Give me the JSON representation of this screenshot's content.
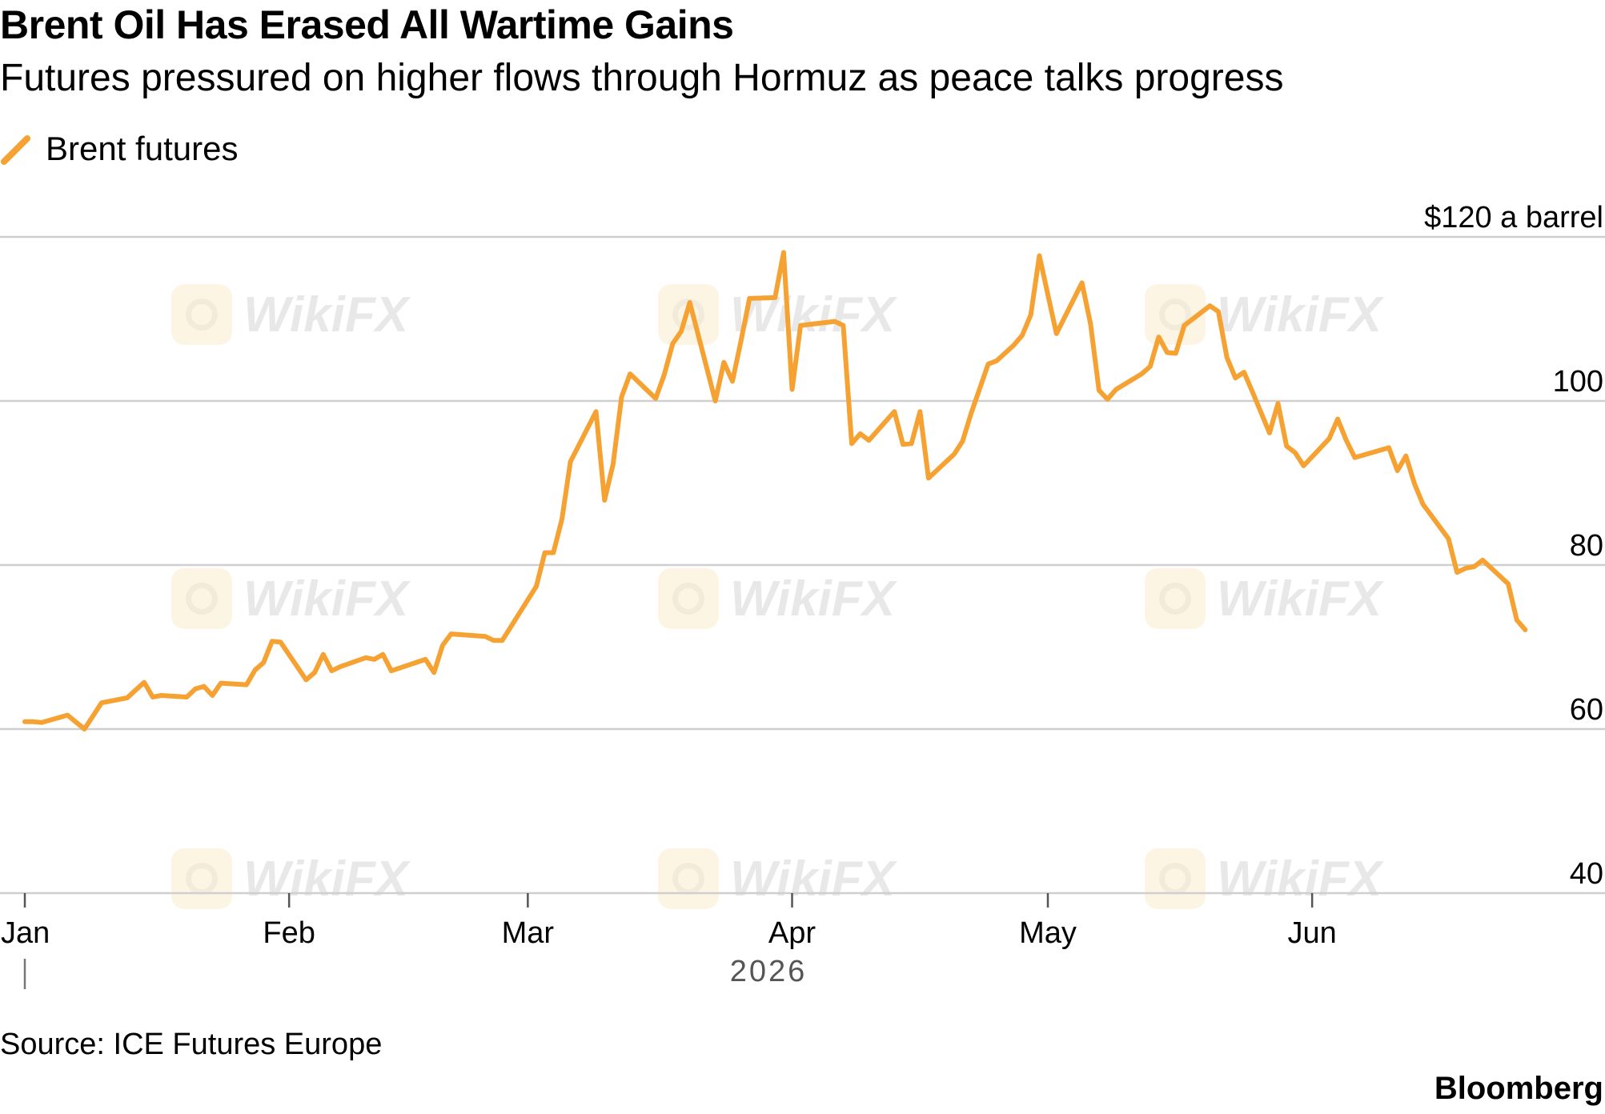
{
  "title": "Brent Oil Has Erased All Wartime Gains",
  "subtitle": "Futures pressured on higher flows through Hormuz as peace talks progress",
  "legend": {
    "label": "Brent futures",
    "color": "#f5a233"
  },
  "source": "Source: ICE Futures Europe",
  "brand": "Bloomberg",
  "watermark": "WikiFX",
  "chart_data": {
    "type": "line",
    "xlabel": "2026",
    "ylim": [
      40,
      120
    ],
    "grid": true,
    "legend_placement": "top-left",
    "y_ticks": [
      {
        "value": 120,
        "label": "$120 a barrel"
      },
      {
        "value": 100,
        "label": "100"
      },
      {
        "value": 80,
        "label": "80"
      },
      {
        "value": 60,
        "label": "60"
      },
      {
        "value": 40,
        "label": "40"
      }
    ],
    "x_ticks": [
      {
        "date": "2026-01-01",
        "label": "Jan"
      },
      {
        "date": "2026-02-01",
        "label": "Feb"
      },
      {
        "date": "2026-03-01",
        "label": "Mar"
      },
      {
        "date": "2026-04-01",
        "label": "Apr"
      },
      {
        "date": "2026-05-01",
        "label": "May"
      },
      {
        "date": "2026-06-01",
        "label": "Jun"
      }
    ],
    "series": [
      {
        "name": "Brent futures",
        "color": "#f5a233",
        "points": [
          [
            "2026-01-01",
            60.9
          ],
          [
            "2026-01-02",
            60.9
          ],
          [
            "2026-01-03",
            60.8
          ],
          [
            "2026-01-06",
            61.7
          ],
          [
            "2026-01-08",
            60.0
          ],
          [
            "2026-01-10",
            63.2
          ],
          [
            "2026-01-13",
            63.8
          ],
          [
            "2026-01-15",
            65.7
          ],
          [
            "2026-01-16",
            63.9
          ],
          [
            "2026-01-17",
            64.1
          ],
          [
            "2026-01-20",
            63.9
          ],
          [
            "2026-01-21",
            64.9
          ],
          [
            "2026-01-22",
            65.2
          ],
          [
            "2026-01-23",
            64.1
          ],
          [
            "2026-01-24",
            65.6
          ],
          [
            "2026-01-27",
            65.4
          ],
          [
            "2026-01-28",
            67.2
          ],
          [
            "2026-01-29",
            68.1
          ],
          [
            "2026-01-30",
            70.7
          ],
          [
            "2026-01-31",
            70.6
          ],
          [
            "2026-02-03",
            66.0
          ],
          [
            "2026-02-04",
            66.9
          ],
          [
            "2026-02-05",
            69.1
          ],
          [
            "2026-02-06",
            67.1
          ],
          [
            "2026-02-07",
            67.6
          ],
          [
            "2026-02-10",
            68.7
          ],
          [
            "2026-02-11",
            68.5
          ],
          [
            "2026-02-12",
            69.1
          ],
          [
            "2026-02-13",
            67.1
          ],
          [
            "2026-02-17",
            68.5
          ],
          [
            "2026-02-18",
            66.9
          ],
          [
            "2026-02-19",
            70.2
          ],
          [
            "2026-02-20",
            71.6
          ],
          [
            "2026-02-24",
            71.3
          ],
          [
            "2026-02-25",
            70.8
          ],
          [
            "2026-02-26",
            70.8
          ],
          [
            "2026-03-02",
            77.4
          ],
          [
            "2026-03-03",
            81.5
          ],
          [
            "2026-03-04",
            81.5
          ],
          [
            "2026-03-05",
            85.6
          ],
          [
            "2026-03-06",
            92.6
          ],
          [
            "2026-03-09",
            98.7
          ],
          [
            "2026-03-10",
            87.9
          ],
          [
            "2026-03-11",
            92.3
          ],
          [
            "2026-03-12",
            100.5
          ],
          [
            "2026-03-13",
            103.3
          ],
          [
            "2026-03-16",
            100.3
          ],
          [
            "2026-03-17",
            103.2
          ],
          [
            "2026-03-18",
            107.0
          ],
          [
            "2026-03-19",
            108.5
          ],
          [
            "2026-03-20",
            112.0
          ],
          [
            "2026-03-23",
            100.0
          ],
          [
            "2026-03-24",
            104.7
          ],
          [
            "2026-03-25",
            102.4
          ],
          [
            "2026-03-26",
            107.3
          ],
          [
            "2026-03-27",
            112.5
          ],
          [
            "2026-03-30",
            112.6
          ],
          [
            "2026-03-31",
            118.1
          ],
          [
            "2026-04-01",
            101.4
          ],
          [
            "2026-04-02",
            109.2
          ],
          [
            "2026-04-06",
            109.7
          ],
          [
            "2026-04-07",
            109.2
          ],
          [
            "2026-04-08",
            94.8
          ],
          [
            "2026-04-09",
            96.0
          ],
          [
            "2026-04-10",
            95.2
          ],
          [
            "2026-04-13",
            98.7
          ],
          [
            "2026-04-14",
            94.7
          ],
          [
            "2026-04-15",
            94.8
          ],
          [
            "2026-04-16",
            98.7
          ],
          [
            "2026-04-17",
            90.6
          ],
          [
            "2026-04-20",
            93.5
          ],
          [
            "2026-04-21",
            95.1
          ],
          [
            "2026-04-22",
            98.5
          ],
          [
            "2026-04-24",
            104.5
          ],
          [
            "2026-04-25",
            104.9
          ],
          [
            "2026-04-27",
            106.8
          ],
          [
            "2026-04-28",
            108.0
          ],
          [
            "2026-04-29",
            110.5
          ],
          [
            "2026-04-30",
            117.7
          ],
          [
            "2026-05-02",
            108.2
          ],
          [
            "2026-05-05",
            114.4
          ],
          [
            "2026-05-06",
            109.4
          ],
          [
            "2026-05-07",
            101.3
          ],
          [
            "2026-05-08",
            100.2
          ],
          [
            "2026-05-09",
            101.4
          ],
          [
            "2026-05-12",
            103.3
          ],
          [
            "2026-05-13",
            104.2
          ],
          [
            "2026-05-14",
            107.8
          ],
          [
            "2026-05-15",
            105.9
          ],
          [
            "2026-05-16",
            105.8
          ],
          [
            "2026-05-17",
            109.2
          ],
          [
            "2026-05-20",
            111.6
          ],
          [
            "2026-05-21",
            110.9
          ],
          [
            "2026-05-22",
            105.3
          ],
          [
            "2026-05-23",
            102.8
          ],
          [
            "2026-05-24",
            103.5
          ],
          [
            "2026-05-25",
            101.1
          ],
          [
            "2026-05-27",
            96.1
          ],
          [
            "2026-05-28",
            99.7
          ],
          [
            "2026-05-29",
            94.5
          ],
          [
            "2026-05-30",
            93.7
          ],
          [
            "2026-05-31",
            92.1
          ],
          [
            "2026-06-03",
            95.4
          ],
          [
            "2026-06-04",
            97.8
          ],
          [
            "2026-06-05",
            95.2
          ],
          [
            "2026-06-06",
            93.1
          ],
          [
            "2026-06-09",
            94.0
          ],
          [
            "2026-06-10",
            94.3
          ],
          [
            "2026-06-11",
            91.5
          ],
          [
            "2026-06-12",
            93.3
          ],
          [
            "2026-06-13",
            89.9
          ],
          [
            "2026-06-14",
            87.4
          ],
          [
            "2026-06-17",
            83.2
          ],
          [
            "2026-06-18",
            79.1
          ],
          [
            "2026-06-19",
            79.6
          ],
          [
            "2026-06-20",
            79.8
          ],
          [
            "2026-06-21",
            80.6
          ],
          [
            "2026-06-24",
            77.7
          ],
          [
            "2026-06-25",
            73.3
          ],
          [
            "2026-06-26",
            72.1
          ]
        ]
      }
    ]
  }
}
